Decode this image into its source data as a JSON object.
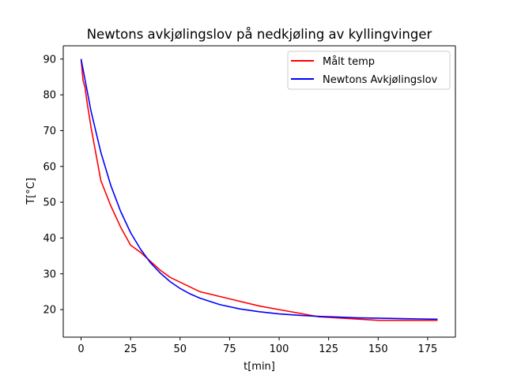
{
  "chart_data": {
    "type": "line",
    "title": "Newtons avkjølingslov på nedkjøling av kyllingvinger",
    "xlabel": "t[min]",
    "ylabel": "T[°C]",
    "xlim": [
      -9,
      189
    ],
    "ylim": [
      12.3,
      93.7
    ],
    "xticks": [
      0,
      25,
      50,
      75,
      100,
      125,
      150,
      175
    ],
    "yticks": [
      20,
      30,
      40,
      50,
      60,
      70,
      80,
      90
    ],
    "grid": false,
    "legend_position": "top-right",
    "series": [
      {
        "name": "Målt temp",
        "color": "#ff0000",
        "x": [
          0,
          1,
          2,
          3,
          5,
          10,
          15,
          20,
          25,
          30,
          40,
          45,
          60,
          75,
          90,
          105,
          120,
          135,
          150,
          165,
          180
        ],
        "y": [
          90,
          84,
          82,
          78,
          71,
          56,
          49,
          43,
          38,
          36,
          31,
          29,
          25,
          23,
          21,
          19.5,
          18,
          17.5,
          17,
          17,
          17
        ]
      },
      {
        "name": "Newtons Avkjølingslov",
        "color": "#0000ff",
        "x": [
          0,
          5,
          10,
          15,
          20,
          25,
          30,
          35,
          40,
          45,
          50,
          55,
          60,
          70,
          80,
          90,
          100,
          110,
          120,
          130,
          140,
          150,
          160,
          170,
          180
        ],
        "y": [
          90,
          75.5,
          63.9,
          54.7,
          47.4,
          41.5,
          36.9,
          33.1,
          30.2,
          27.8,
          25.9,
          24.4,
          23.2,
          21.4,
          20.2,
          19.4,
          18.8,
          18.4,
          18.1,
          17.9,
          17.7,
          17.6,
          17.5,
          17.4,
          17.3
        ]
      }
    ]
  }
}
